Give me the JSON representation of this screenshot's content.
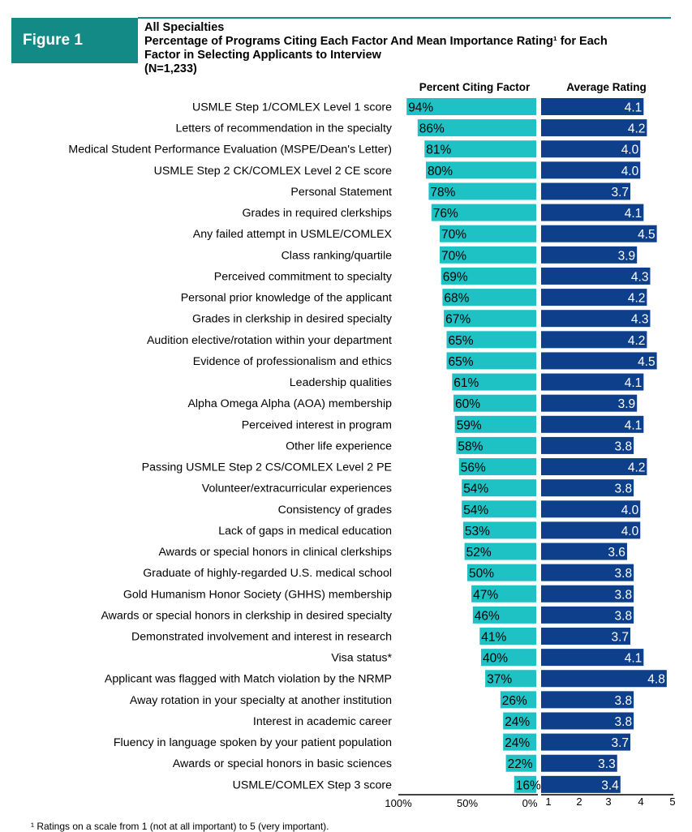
{
  "figure_label": "Figure 1",
  "title_lines": [
    "All Specialties",
    "Percentage of Programs Citing Each Factor And Mean Importance Rating¹ for Each",
    "Factor in Selecting Applicants to Interview",
    "(N=1,233)"
  ],
  "footnote": "¹ Ratings on a scale from 1 (not at all important) to 5 (very important).",
  "colors": {
    "percent_bar": "#1fc2c4",
    "rating_bar": "#0d3f8a",
    "badge": "#148a87"
  },
  "chart_data": {
    "type": "bar",
    "orientation": "horizontal",
    "panels": [
      {
        "name": "Percent Citing Factor",
        "axis_ticks": [
          "100%",
          "50%",
          "0%"
        ],
        "xlim": [
          100,
          0
        ]
      },
      {
        "name": "Average Rating",
        "axis_ticks": [
          "1",
          "2",
          "3",
          "4",
          "5"
        ],
        "xlim": [
          1,
          5
        ]
      }
    ],
    "rows": [
      {
        "label": "USMLE Step 1/COMLEX Level 1 score",
        "percent": 94,
        "percent_label": "94%",
        "rating": 4.1,
        "rating_label": "4.1"
      },
      {
        "label": "Letters of recommendation in the specialty",
        "percent": 86,
        "percent_label": "86%",
        "rating": 4.2,
        "rating_label": "4.2"
      },
      {
        "label": "Medical Student Performance Evaluation (MSPE/Dean's Letter)",
        "percent": 81,
        "percent_label": "81%",
        "rating": 4.0,
        "rating_label": "4.0"
      },
      {
        "label": "USMLE Step 2 CK/COMLEX Level 2 CE score",
        "percent": 80,
        "percent_label": "80%",
        "rating": 4.0,
        "rating_label": "4.0"
      },
      {
        "label": "Personal Statement",
        "percent": 78,
        "percent_label": "78%",
        "rating": 3.7,
        "rating_label": "3.7"
      },
      {
        "label": "Grades in required clerkships",
        "percent": 76,
        "percent_label": "76%",
        "rating": 4.1,
        "rating_label": "4.1"
      },
      {
        "label": "Any failed attempt in USMLE/COMLEX",
        "percent": 70,
        "percent_label": "70%",
        "rating": 4.5,
        "rating_label": "4.5"
      },
      {
        "label": "Class ranking/quartile",
        "percent": 70,
        "percent_label": "70%",
        "rating": 3.9,
        "rating_label": "3.9"
      },
      {
        "label": "Perceived commitment to specialty",
        "percent": 69,
        "percent_label": "69%",
        "rating": 4.3,
        "rating_label": "4.3"
      },
      {
        "label": "Personal prior knowledge of the applicant",
        "percent": 68,
        "percent_label": "68%",
        "rating": 4.2,
        "rating_label": "4.2"
      },
      {
        "label": "Grades in clerkship in desired specialty",
        "percent": 67,
        "percent_label": "67%",
        "rating": 4.3,
        "rating_label": "4.3"
      },
      {
        "label": "Audition elective/rotation within your department",
        "percent": 65,
        "percent_label": "65%",
        "rating": 4.2,
        "rating_label": "4.2"
      },
      {
        "label": "Evidence of professionalism and ethics",
        "percent": 65,
        "percent_label": "65%",
        "rating": 4.5,
        "rating_label": "4.5"
      },
      {
        "label": "Leadership qualities",
        "percent": 61,
        "percent_label": "61%",
        "rating": 4.1,
        "rating_label": "4.1"
      },
      {
        "label": "Alpha Omega Alpha (AOA) membership",
        "percent": 60,
        "percent_label": "60%",
        "rating": 3.9,
        "rating_label": "3.9"
      },
      {
        "label": "Perceived interest in program",
        "percent": 59,
        "percent_label": "59%",
        "rating": 4.1,
        "rating_label": "4.1"
      },
      {
        "label": "Other life experience",
        "percent": 58,
        "percent_label": "58%",
        "rating": 3.8,
        "rating_label": "3.8"
      },
      {
        "label": "Passing USMLE Step 2 CS/COMLEX Level 2 PE",
        "percent": 56,
        "percent_label": "56%",
        "rating": 4.2,
        "rating_label": "4.2"
      },
      {
        "label": "Volunteer/extracurricular experiences",
        "percent": 54,
        "percent_label": "54%",
        "rating": 3.8,
        "rating_label": "3.8"
      },
      {
        "label": "Consistency of grades",
        "percent": 54,
        "percent_label": "54%",
        "rating": 4.0,
        "rating_label": "4.0"
      },
      {
        "label": "Lack of gaps in medical education",
        "percent": 53,
        "percent_label": "53%",
        "rating": 4.0,
        "rating_label": "4.0"
      },
      {
        "label": "Awards or special honors in clinical clerkships",
        "percent": 52,
        "percent_label": "52%",
        "rating": 3.6,
        "rating_label": "3.6"
      },
      {
        "label": "Graduate of highly-regarded U.S. medical school",
        "percent": 50,
        "percent_label": "50%",
        "rating": 3.8,
        "rating_label": "3.8"
      },
      {
        "label": "Gold Humanism Honor Society (GHHS) membership",
        "percent": 47,
        "percent_label": "47%",
        "rating": 3.8,
        "rating_label": "3.8"
      },
      {
        "label": "Awards or special honors in clerkship in desired specialty",
        "percent": 46,
        "percent_label": "46%",
        "rating": 3.8,
        "rating_label": "3.8"
      },
      {
        "label": "Demonstrated involvement and interest in research",
        "percent": 41,
        "percent_label": "41%",
        "rating": 3.7,
        "rating_label": "3.7"
      },
      {
        "label": "Visa status*",
        "percent": 40,
        "percent_label": "40%",
        "rating": 4.1,
        "rating_label": "4.1"
      },
      {
        "label": "Applicant was flagged with Match violation by the NRMP",
        "percent": 37,
        "percent_label": "37%",
        "rating": 4.8,
        "rating_label": "4.8"
      },
      {
        "label": "Away rotation in your specialty at another institution",
        "percent": 26,
        "percent_label": "26%",
        "rating": 3.8,
        "rating_label": "3.8"
      },
      {
        "label": "Interest in academic career",
        "percent": 24,
        "percent_label": "24%",
        "rating": 3.8,
        "rating_label": "3.8"
      },
      {
        "label": "Fluency in language spoken by your patient population",
        "percent": 24,
        "percent_label": "24%",
        "rating": 3.7,
        "rating_label": "3.7"
      },
      {
        "label": "Awards or special honors in basic sciences",
        "percent": 22,
        "percent_label": "22%",
        "rating": 3.3,
        "rating_label": "3.3"
      },
      {
        "label": "USMLE/COMLEX Step 3 score",
        "percent": 16,
        "percent_label": "16%",
        "rating": 3.4,
        "rating_label": "3.4"
      }
    ]
  }
}
